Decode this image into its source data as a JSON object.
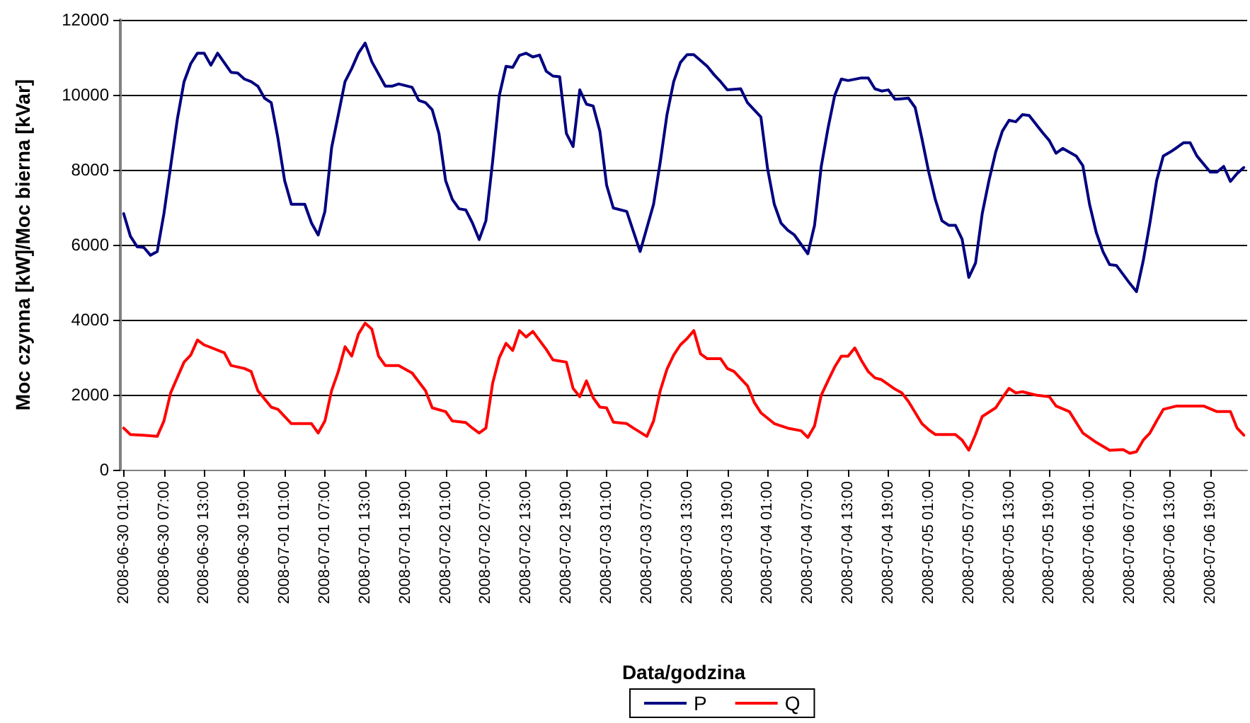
{
  "chart_data": {
    "type": "line",
    "xlabel": "Data/godzina",
    "ylabel": "Moc czynna [kW]/Moc bierna [kVar]",
    "xlim": [
      "2008-06-30T00:30",
      "2008-07-07T00:30"
    ],
    "xticks": [
      {
        "value": "2008-06-30T01:00",
        "label": "2008-06-30 01:00"
      },
      {
        "value": "2008-06-30T07:00",
        "label": "2008-06-30 07:00"
      },
      {
        "value": "2008-06-30T13:00",
        "label": "2008-06-30 13:00"
      },
      {
        "value": "2008-06-30T19:00",
        "label": "2008-06-30 19:00"
      },
      {
        "value": "2008-07-01T01:00",
        "label": "2008-07-01 01:00"
      },
      {
        "value": "2008-07-01T07:00",
        "label": "2008-07-01 07:00"
      },
      {
        "value": "2008-07-01T13:00",
        "label": "2008-07-01 13:00"
      },
      {
        "value": "2008-07-01T19:00",
        "label": "2008-07-01 19:00"
      },
      {
        "value": "2008-07-02T01:00",
        "label": "2008-07-02 01:00"
      },
      {
        "value": "2008-07-02T07:00",
        "label": "2008-07-02 07:00"
      },
      {
        "value": "2008-07-02T13:00",
        "label": "2008-07-02 13:00"
      },
      {
        "value": "2008-07-02T19:00",
        "label": "2008-07-02 19:00"
      },
      {
        "value": "2008-07-03T01:00",
        "label": "2008-07-03 01:00"
      },
      {
        "value": "2008-07-03T07:00",
        "label": "2008-07-03 07:00"
      },
      {
        "value": "2008-07-03T13:00",
        "label": "2008-07-03 13:00"
      },
      {
        "value": "2008-07-03T19:00",
        "label": "2008-07-03 19:00"
      },
      {
        "value": "2008-07-04T01:00",
        "label": "2008-07-04 01:00"
      },
      {
        "value": "2008-07-04T07:00",
        "label": "2008-07-04 07:00"
      },
      {
        "value": "2008-07-04T13:00",
        "label": "2008-07-04 13:00"
      },
      {
        "value": "2008-07-04T19:00",
        "label": "2008-07-04 19:00"
      },
      {
        "value": "2008-07-05T01:00",
        "label": "2008-07-05 01:00"
      },
      {
        "value": "2008-07-05T07:00",
        "label": "2008-07-05 07:00"
      },
      {
        "value": "2008-07-05T13:00",
        "label": "2008-07-05 13:00"
      },
      {
        "value": "2008-07-05T19:00",
        "label": "2008-07-05 19:00"
      },
      {
        "value": "2008-07-06T01:00",
        "label": "2008-07-06 01:00"
      },
      {
        "value": "2008-07-06T07:00",
        "label": "2008-07-06 07:00"
      },
      {
        "value": "2008-07-06T13:00",
        "label": "2008-07-06 13:00"
      },
      {
        "value": "2008-07-06T19:00",
        "label": "2008-07-06 19:00"
      }
    ],
    "ylim": [
      0,
      12000
    ],
    "yticks": [
      0,
      2000,
      4000,
      6000,
      8000,
      10000,
      12000
    ],
    "grid": "y",
    "legend": "bottom",
    "series": [
      {
        "name": "P",
        "color": "#000080",
        "x": [
          "2008-06-30T01:00",
          "2008-06-30T02:00",
          "2008-06-30T03:00",
          "2008-06-30T04:00",
          "2008-06-30T05:00",
          "2008-06-30T06:00",
          "2008-06-30T07:00",
          "2008-06-30T08:00",
          "2008-06-30T09:00",
          "2008-06-30T10:00",
          "2008-06-30T11:00",
          "2008-06-30T12:00",
          "2008-06-30T13:00",
          "2008-06-30T14:00",
          "2008-06-30T15:00",
          "2008-06-30T17:00",
          "2008-06-30T18:00",
          "2008-06-30T19:00",
          "2008-06-30T20:00",
          "2008-06-30T21:00",
          "2008-06-30T22:00",
          "2008-06-30T23:00",
          "2008-07-01T00:00",
          "2008-07-01T01:00",
          "2008-07-01T02:00",
          "2008-07-01T04:00",
          "2008-07-01T05:00",
          "2008-07-01T06:00",
          "2008-07-01T07:00",
          "2008-07-01T08:00",
          "2008-07-01T09:00",
          "2008-07-01T10:00",
          "2008-07-01T11:00",
          "2008-07-01T12:00",
          "2008-07-01T13:00",
          "2008-07-01T14:00",
          "2008-07-01T16:00",
          "2008-07-01T17:00",
          "2008-07-01T18:00",
          "2008-07-01T20:00",
          "2008-07-01T21:00",
          "2008-07-01T22:00",
          "2008-07-01T23:00",
          "2008-07-02T00:00",
          "2008-07-02T01:00",
          "2008-07-02T02:00",
          "2008-07-02T03:00",
          "2008-07-02T04:00",
          "2008-07-02T05:00",
          "2008-07-02T06:00",
          "2008-07-02T07:00",
          "2008-07-02T08:00",
          "2008-07-02T09:00",
          "2008-07-02T10:00",
          "2008-07-02T11:00",
          "2008-07-02T12:00",
          "2008-07-02T13:00",
          "2008-07-02T14:00",
          "2008-07-02T15:00",
          "2008-07-02T16:00",
          "2008-07-02T17:00",
          "2008-07-02T18:00",
          "2008-07-02T19:00",
          "2008-07-02T20:00",
          "2008-07-02T21:00",
          "2008-07-02T22:00",
          "2008-07-02T23:00",
          "2008-07-03T00:00",
          "2008-07-03T01:00",
          "2008-07-03T02:00",
          "2008-07-03T04:00",
          "2008-07-03T05:00",
          "2008-07-03T06:00",
          "2008-07-03T08:00",
          "2008-07-03T09:00",
          "2008-07-03T10:00",
          "2008-07-03T11:00",
          "2008-07-03T12:00",
          "2008-07-03T13:00",
          "2008-07-03T14:00",
          "2008-07-03T16:00",
          "2008-07-03T17:00",
          "2008-07-03T18:00",
          "2008-07-03T19:00",
          "2008-07-03T21:00",
          "2008-07-03T22:00",
          "2008-07-04T00:00",
          "2008-07-04T01:00",
          "2008-07-04T02:00",
          "2008-07-04T03:00",
          "2008-07-04T04:00",
          "2008-07-04T05:00",
          "2008-07-04T07:00",
          "2008-07-04T08:00",
          "2008-07-04T09:00",
          "2008-07-04T10:00",
          "2008-07-04T11:00",
          "2008-07-04T12:00",
          "2008-07-04T13:00",
          "2008-07-04T15:00",
          "2008-07-04T16:00",
          "2008-07-04T17:00",
          "2008-07-04T18:00",
          "2008-07-04T19:00",
          "2008-07-04T20:00",
          "2008-07-04T22:00",
          "2008-07-04T23:00",
          "2008-07-05T00:00",
          "2008-07-05T01:00",
          "2008-07-05T02:00",
          "2008-07-05T03:00",
          "2008-07-05T04:00",
          "2008-07-05T05:00",
          "2008-07-05T06:00",
          "2008-07-05T07:00",
          "2008-07-05T08:00",
          "2008-07-05T09:00",
          "2008-07-05T10:00",
          "2008-07-05T11:00",
          "2008-07-05T12:00",
          "2008-07-05T13:00",
          "2008-07-05T14:00",
          "2008-07-05T15:00",
          "2008-07-05T16:00",
          "2008-07-05T18:00",
          "2008-07-05T19:00",
          "2008-07-05T20:00",
          "2008-07-05T21:00",
          "2008-07-05T23:00",
          "2008-07-06T00:00",
          "2008-07-06T01:00",
          "2008-07-06T02:00",
          "2008-07-06T03:00",
          "2008-07-06T04:00",
          "2008-07-06T05:00",
          "2008-07-06T07:00",
          "2008-07-06T08:00",
          "2008-07-06T09:00",
          "2008-07-06T10:00",
          "2008-07-06T11:00",
          "2008-07-06T12:00",
          "2008-07-06T13:00",
          "2008-07-06T14:00",
          "2008-07-06T15:00",
          "2008-07-06T16:00",
          "2008-07-06T17:00",
          "2008-07-06T19:00",
          "2008-07-06T20:00",
          "2008-07-06T21:00",
          "2008-07-06T22:00",
          "2008-07-06T23:00",
          "2008-07-07T00:00"
        ],
        "values": [
          6830,
          6230,
          5950,
          5930,
          5720,
          5820,
          6830,
          8090,
          9350,
          10350,
          10830,
          11110,
          11110,
          10790,
          11110,
          10600,
          10580,
          10420,
          10350,
          10230,
          9910,
          9790,
          8840,
          7710,
          7080,
          7080,
          6580,
          6260,
          6890,
          8590,
          9470,
          10350,
          10700,
          11110,
          11380,
          10880,
          10230,
          10230,
          10290,
          10200,
          9850,
          9790,
          9600,
          8970,
          7710,
          7210,
          6960,
          6930,
          6580,
          6140,
          6640,
          8210,
          9980,
          10760,
          10730,
          11050,
          11110,
          11010,
          11060,
          10630,
          10500,
          10480,
          8970,
          8620,
          10130,
          9750,
          9700,
          9030,
          7590,
          6980,
          6890,
          6350,
          5820,
          7080,
          8210,
          9470,
          10350,
          10860,
          11070,
          11070,
          10760,
          10540,
          10350,
          10130,
          10160,
          9790,
          9410,
          8030,
          7080,
          6580,
          6390,
          6260,
          5760,
          6520,
          8090,
          9100,
          9980,
          10420,
          10380,
          10450,
          10450,
          10160,
          10100,
          10130,
          9880,
          9910,
          9660,
          8840,
          7960,
          7210,
          6640,
          6520,
          6520,
          6150,
          5130,
          5510,
          6830,
          7710,
          8470,
          9030,
          9320,
          9280,
          9470,
          9450,
          8990,
          8780,
          8440,
          8570,
          8370,
          8110,
          7080,
          6330,
          5820,
          5470,
          5450,
          4970,
          4750,
          5570,
          6580,
          7710,
          8370,
          8470,
          8590,
          8720,
          8720,
          8370,
          7940,
          7940,
          8090,
          7690,
          7900,
          8060
        ]
      },
      {
        "name": "Q",
        "color": "#ff0000",
        "x": [
          "2008-06-30T01:00",
          "2008-06-30T02:00",
          "2008-06-30T04:00",
          "2008-06-30T06:00",
          "2008-06-30T07:00",
          "2008-06-30T08:00",
          "2008-06-30T10:00",
          "2008-06-30T11:00",
          "2008-06-30T12:00",
          "2008-06-30T13:00",
          "2008-06-30T16:00",
          "2008-06-30T17:00",
          "2008-06-30T19:00",
          "2008-06-30T20:00",
          "2008-06-30T21:00",
          "2008-06-30T23:00",
          "2008-07-01T00:00",
          "2008-07-01T02:00",
          "2008-07-01T05:00",
          "2008-07-01T06:00",
          "2008-07-01T07:00",
          "2008-07-01T08:00",
          "2008-07-01T09:00",
          "2008-07-01T10:00",
          "2008-07-01T11:00",
          "2008-07-01T12:00",
          "2008-07-01T13:00",
          "2008-07-01T14:00",
          "2008-07-01T15:00",
          "2008-07-01T16:00",
          "2008-07-01T18:00",
          "2008-07-01T20:00",
          "2008-07-01T22:00",
          "2008-07-01T23:00",
          "2008-07-02T01:00",
          "2008-07-02T02:00",
          "2008-07-02T04:00",
          "2008-07-02T05:00",
          "2008-07-02T06:00",
          "2008-07-02T07:00",
          "2008-07-02T08:00",
          "2008-07-02T09:00",
          "2008-07-02T10:00",
          "2008-07-02T11:00",
          "2008-07-02T12:00",
          "2008-07-02T13:00",
          "2008-07-02T14:00",
          "2008-07-02T16:00",
          "2008-07-02T17:00",
          "2008-07-02T19:00",
          "2008-07-02T20:00",
          "2008-07-02T21:00",
          "2008-07-02T22:00",
          "2008-07-02T23:00",
          "2008-07-03T00:00",
          "2008-07-03T01:00",
          "2008-07-03T02:00",
          "2008-07-03T04:00",
          "2008-07-03T05:00",
          "2008-07-03T07:00",
          "2008-07-03T08:00",
          "2008-07-03T09:00",
          "2008-07-03T10:00",
          "2008-07-03T11:00",
          "2008-07-03T12:00",
          "2008-07-03T13:00",
          "2008-07-03T14:00",
          "2008-07-03T15:00",
          "2008-07-03T16:00",
          "2008-07-03T18:00",
          "2008-07-03T19:00",
          "2008-07-03T20:00",
          "2008-07-03T22:00",
          "2008-07-03T23:00",
          "2008-07-04T00:00",
          "2008-07-04T02:00",
          "2008-07-04T04:00",
          "2008-07-04T06:00",
          "2008-07-04T07:00",
          "2008-07-04T08:00",
          "2008-07-04T09:00",
          "2008-07-04T10:00",
          "2008-07-04T11:00",
          "2008-07-04T12:00",
          "2008-07-04T13:00",
          "2008-07-04T14:00",
          "2008-07-04T15:00",
          "2008-07-04T16:00",
          "2008-07-04T17:00",
          "2008-07-04T18:00",
          "2008-07-04T20:00",
          "2008-07-04T21:00",
          "2008-07-04T22:00",
          "2008-07-05T00:00",
          "2008-07-05T01:00",
          "2008-07-05T02:00",
          "2008-07-05T05:00",
          "2008-07-05T06:00",
          "2008-07-05T07:00",
          "2008-07-05T08:00",
          "2008-07-05T09:00",
          "2008-07-05T11:00",
          "2008-07-05T12:00",
          "2008-07-05T13:00",
          "2008-07-05T14:00",
          "2008-07-05T15:00",
          "2008-07-05T17:00",
          "2008-07-05T19:00",
          "2008-07-05T20:00",
          "2008-07-05T22:00",
          "2008-07-06T00:00",
          "2008-07-06T02:00",
          "2008-07-06T04:00",
          "2008-07-06T06:00",
          "2008-07-06T07:00",
          "2008-07-06T08:00",
          "2008-07-06T09:00",
          "2008-07-06T10:00",
          "2008-07-06T11:00",
          "2008-07-06T12:00",
          "2008-07-06T14:00",
          "2008-07-06T18:00",
          "2008-07-06T20:00",
          "2008-07-06T22:00",
          "2008-07-06T23:00",
          "2008-07-07T00:00"
        ],
        "values": [
          1110,
          940,
          920,
          890,
          1300,
          2050,
          2870,
          3060,
          3460,
          3330,
          3120,
          2780,
          2700,
          2620,
          2110,
          1670,
          1610,
          1230,
          1230,
          980,
          1300,
          2110,
          2620,
          3280,
          3030,
          3620,
          3910,
          3750,
          3030,
          2780,
          2780,
          2580,
          2110,
          1650,
          1550,
          1300,
          1260,
          1110,
          980,
          1110,
          2300,
          2990,
          3370,
          3180,
          3710,
          3540,
          3690,
          3210,
          2930,
          2870,
          2170,
          1950,
          2370,
          1920,
          1670,
          1650,
          1270,
          1230,
          1110,
          890,
          1300,
          2110,
          2680,
          3060,
          3330,
          3500,
          3710,
          3090,
          2960,
          2960,
          2700,
          2620,
          2240,
          1800,
          1520,
          1230,
          1110,
          1040,
          860,
          1170,
          1990,
          2370,
          2740,
          3030,
          3030,
          3250,
          2910,
          2620,
          2450,
          2400,
          2150,
          2050,
          1820,
          1230,
          1070,
          940,
          940,
          790,
          520,
          940,
          1420,
          1650,
          1920,
          2170,
          2050,
          2080,
          1990,
          1950,
          1700,
          1550,
          980,
          730,
          520,
          540,
          440,
          480,
          790,
          980,
          1300,
          1610,
          1700,
          1700,
          1550,
          1550,
          1110,
          920
        ]
      }
    ]
  }
}
